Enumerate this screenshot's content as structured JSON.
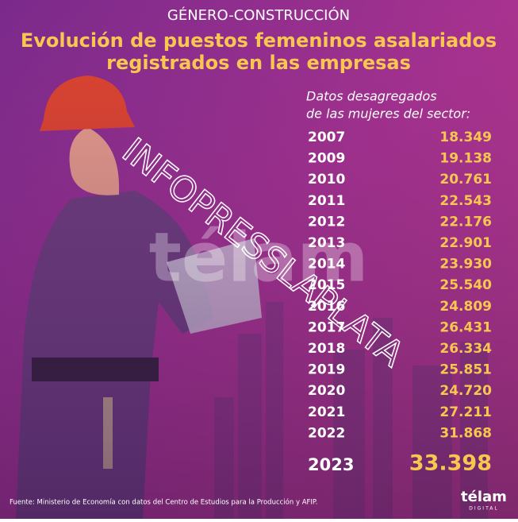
{
  "header": {
    "kicker": "GÉNERO-CONSTRUCCIÓN",
    "title_lines": [
      "Evolución de puestos femeninos asalariados",
      "registrados en las empresas"
    ]
  },
  "table": {
    "caption_lines": [
      "Datos desagregados",
      "de las mujeres del sector:"
    ],
    "rows": [
      [
        "2007",
        "18.349"
      ],
      [
        "2009",
        "19.138"
      ],
      [
        "2010",
        "20.761"
      ],
      [
        "2011",
        "22.543"
      ],
      [
        "2012",
        "22.176"
      ],
      [
        "2013",
        "22.901"
      ],
      [
        "2014",
        "23.930"
      ],
      [
        "2015",
        "25.540"
      ],
      [
        "2016",
        "24.809"
      ],
      [
        "2017",
        "26.431"
      ],
      [
        "2018",
        "26.334"
      ],
      [
        "2019",
        "25.851"
      ],
      [
        "2020",
        "24.720"
      ],
      [
        "2021",
        "27.211"
      ],
      [
        "2022",
        "31.868"
      ]
    ],
    "highlight": [
      "2023",
      "33.398"
    ]
  },
  "source": "Fuente: Ministerio de Economía con datos del Centro de Estudios para la Producción y AFIP.",
  "logo": {
    "name": "télam",
    "sub": "DIGITAL"
  },
  "watermarks": [
    "télam",
    "INFOPRESSLAPLATA"
  ]
}
